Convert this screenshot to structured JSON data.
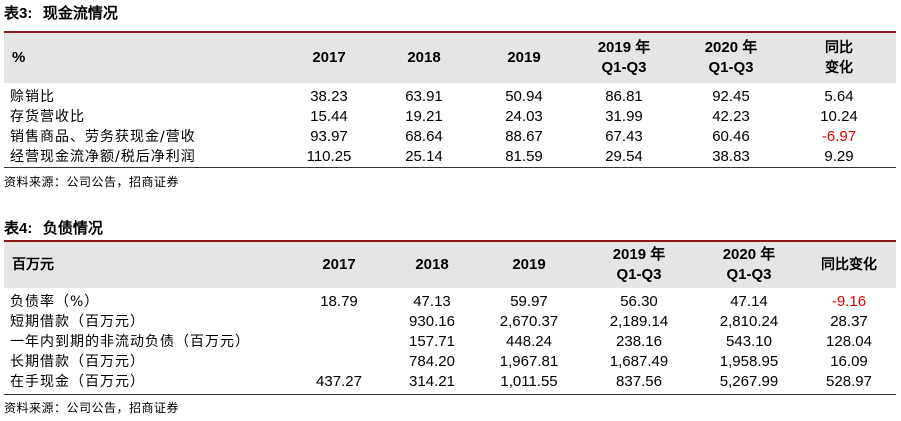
{
  "table3": {
    "title_prefix": "表",
    "title_num": "3:",
    "title_text": "现金流情况",
    "header": {
      "col0": "%",
      "col1": "2017",
      "col2": "2018",
      "col3": "2019",
      "col4_line1": "2019 年",
      "col4_line2": "Q1-Q3",
      "col5_line1": "2020 年",
      "col5_line2": "Q1-Q3",
      "col6_line1": "同比",
      "col6_line2": "变化"
    },
    "rows": [
      {
        "label": "赊销比",
        "v2017": "38.23",
        "v2018": "63.91",
        "v2019": "50.94",
        "q2019": "86.81",
        "q2020": "92.45",
        "yoy": "5.64"
      },
      {
        "label": "存货营收比",
        "v2017": "15.44",
        "v2018": "19.21",
        "v2019": "24.03",
        "q2019": "31.99",
        "q2020": "42.23",
        "yoy": "10.24"
      },
      {
        "label": "销售商品、劳务获现金/营收",
        "v2017": "93.97",
        "v2018": "68.64",
        "v2019": "88.67",
        "q2019": "67.43",
        "q2020": "60.46",
        "yoy": "-6.97"
      },
      {
        "label": "经营现金流净额/税后净利润",
        "v2017": "110.25",
        "v2018": "25.14",
        "v2019": "81.59",
        "q2019": "29.54",
        "q2020": "38.83",
        "yoy": "9.29"
      }
    ],
    "source": "资料来源：公司公告，招商证券"
  },
  "table4": {
    "title_prefix": "表",
    "title_num": "4:",
    "title_text": "负债情况",
    "header": {
      "col0": "百万元",
      "col1": "2017",
      "col2": "2018",
      "col3": "2019",
      "col4_line1": "2019 年",
      "col4_line2": "Q1-Q3",
      "col5_line1": "2020 年",
      "col5_line2": "Q1-Q3",
      "col6": "同比变化"
    },
    "rows": [
      {
        "label": "负债率（%）",
        "v2017": "18.79",
        "v2018": "47.13",
        "v2019": "59.97",
        "q2019": "56.30",
        "q2020": "47.14",
        "yoy": "-9.16"
      },
      {
        "label": "短期借款（百万元）",
        "v2017": "",
        "v2018": "930.16",
        "v2019": "2,670.37",
        "q2019": "2,189.14",
        "q2020": "2,810.24",
        "yoy": "28.37"
      },
      {
        "label": "一年内到期的非流动负债（百万元）",
        "v2017": "",
        "v2018": "157.71",
        "v2019": "448.24",
        "q2019": "238.16",
        "q2020": "543.10",
        "yoy": "128.04"
      },
      {
        "label": "长期借款（百万元）",
        "v2017": "",
        "v2018": "784.20",
        "v2019": "1,967.81",
        "q2019": "1,687.49",
        "q2020": "1,958.95",
        "yoy": "16.09"
      },
      {
        "label": "在手现金（百万元）",
        "v2017": "437.27",
        "v2018": "314.21",
        "v2019": "1,011.55",
        "q2019": "837.56",
        "q2020": "5,267.99",
        "yoy": "528.97"
      }
    ],
    "source": "资料来源：公司公告，招商证券"
  },
  "colors": {
    "accent": "#8a1a1a",
    "negative": "#e00000",
    "header_bg": "#e5e5e5"
  }
}
